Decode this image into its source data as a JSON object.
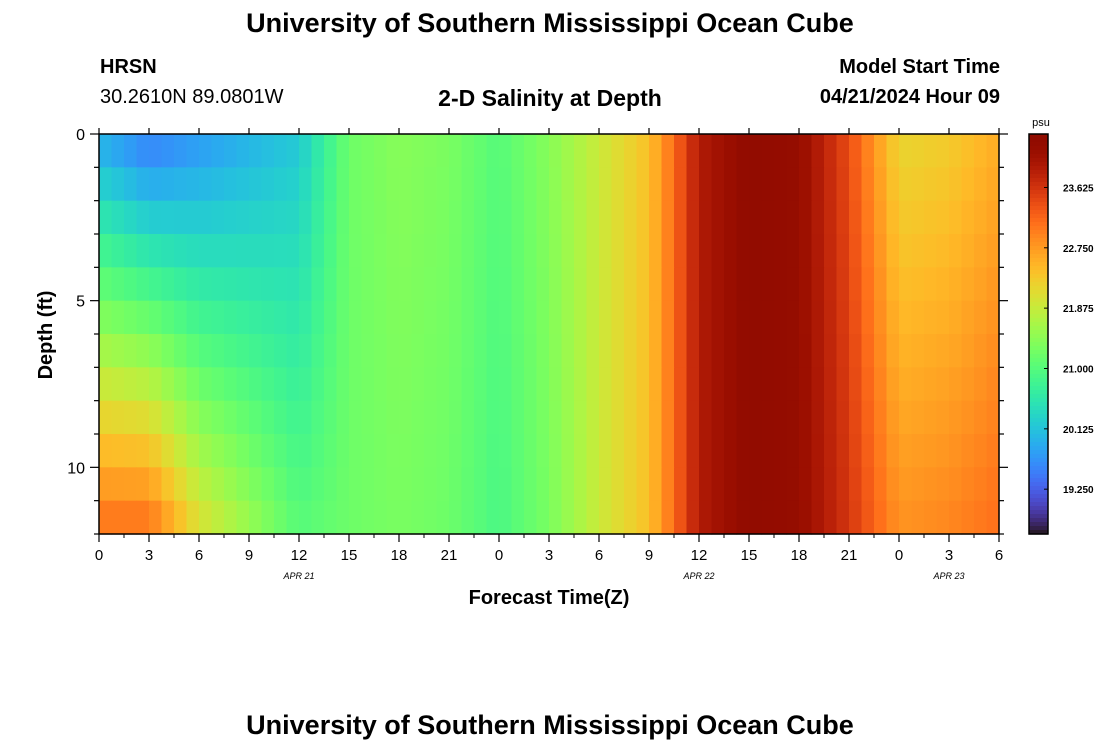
{
  "header": {
    "title": "University of Southern Mississippi Ocean Cube",
    "station": "HRSN",
    "coords": "30.2610N  89.0801W",
    "subtitle": "2-D Salinity at Depth",
    "model_label": "Model Start Time",
    "model_time": "04/21/2024 Hour 09"
  },
  "footer": {
    "title": "University of Southern Mississippi Ocean Cube"
  },
  "chart_data": {
    "type": "heatmap",
    "title": "2-D Salinity at Depth",
    "xlabel": "Forecast Time(Z)",
    "ylabel": "Depth (ft)",
    "x_ticks": [
      "0",
      "3",
      "6",
      "9",
      "12",
      "15",
      "18",
      "21",
      "0",
      "3",
      "6",
      "9",
      "12",
      "15",
      "18",
      "21",
      "0",
      "3",
      "6"
    ],
    "date_labels": [
      {
        "label": "APR 21",
        "at_hour": 12
      },
      {
        "label": "APR 22",
        "at_hour": 36
      },
      {
        "label": "APR 23",
        "at_hour": 51
      }
    ],
    "x_range_hours": [
      0,
      54
    ],
    "ylim_ft": [
      0,
      12
    ],
    "y_ticks": [
      "0",
      "5",
      "10"
    ],
    "depth_levels_ft": [
      0.5,
      1.5,
      2.5,
      3.5,
      4.5,
      5.5,
      6.5,
      7.5,
      8.5,
      9.5,
      10.5,
      11.5
    ],
    "colorbar": {
      "unit": "psu",
      "range": [
        18.6,
        24.4
      ],
      "tick_values": [
        19.25,
        20.125,
        21.0,
        21.875,
        22.75,
        23.625
      ],
      "tick_labels": [
        "19.250",
        "20.125",
        "21.000",
        "21.875",
        "22.750",
        "23.625"
      ],
      "colormap": "turbo"
    },
    "surface_profile_psu": {
      "hours": [
        0,
        3,
        6,
        9,
        12,
        15,
        18,
        21,
        24,
        27,
        30,
        33,
        36,
        39,
        42,
        45,
        48,
        51,
        54
      ],
      "values": [
        20.0,
        19.6,
        19.8,
        20.0,
        20.2,
        21.2,
        21.4,
        21.3,
        21.0,
        21.4,
        21.9,
        22.4,
        23.9,
        24.3,
        24.2,
        23.4,
        22.2,
        22.3,
        22.6
      ]
    },
    "bottom_profile_psu": {
      "hours": [
        0,
        3,
        6,
        9,
        12,
        15,
        18,
        21,
        24,
        27,
        30,
        33,
        36,
        39,
        42,
        45,
        48,
        51,
        54
      ],
      "values": [
        23.0,
        23.0,
        22.0,
        21.5,
        21.0,
        21.2,
        21.3,
        21.2,
        20.9,
        21.3,
        21.9,
        22.4,
        23.9,
        24.3,
        24.2,
        23.6,
        22.8,
        22.9,
        23.1
      ]
    }
  }
}
